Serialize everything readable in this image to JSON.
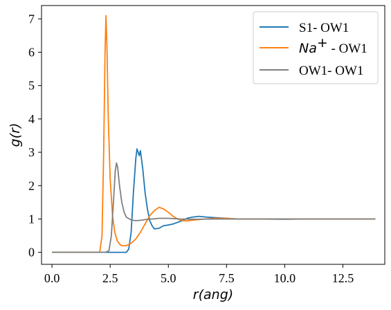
{
  "chart_data": {
    "type": "line",
    "xlabel": "r(ang)",
    "ylabel": "g(r)",
    "xlim": [
      -0.45,
      14.3
    ],
    "ylim": [
      -0.36,
      7.4
    ],
    "xticks": [
      "0.0",
      "2.5",
      "5.0",
      "7.5",
      "10.0",
      "12.5"
    ],
    "yticks": [
      "0",
      "1",
      "2",
      "3",
      "4",
      "5",
      "6",
      "7"
    ],
    "legend_position": "top-right",
    "series": [
      {
        "name": "S1- OW1",
        "color": "#1f77b4",
        "points": [
          [
            0,
            0
          ],
          [
            3.2,
            0
          ],
          [
            3.3,
            0.1
          ],
          [
            3.4,
            0.6
          ],
          [
            3.5,
            1.8
          ],
          [
            3.6,
            2.8
          ],
          [
            3.65,
            3.1
          ],
          [
            3.75,
            2.9
          ],
          [
            3.8,
            3.05
          ],
          [
            3.9,
            2.5
          ],
          [
            4.0,
            1.8
          ],
          [
            4.1,
            1.3
          ],
          [
            4.2,
            0.95
          ],
          [
            4.3,
            0.8
          ],
          [
            4.4,
            0.7
          ],
          [
            4.6,
            0.72
          ],
          [
            4.8,
            0.8
          ],
          [
            5.0,
            0.82
          ],
          [
            5.2,
            0.85
          ],
          [
            5.4,
            0.9
          ],
          [
            5.6,
            0.95
          ],
          [
            5.8,
            1.02
          ],
          [
            6.0,
            1.05
          ],
          [
            6.3,
            1.08
          ],
          [
            6.6,
            1.06
          ],
          [
            7.0,
            1.04
          ],
          [
            7.5,
            1.02
          ],
          [
            8.0,
            1.0
          ],
          [
            9.0,
            1.0
          ],
          [
            10.0,
            0.99
          ],
          [
            11.0,
            1.0
          ],
          [
            12.0,
            1.0
          ],
          [
            13.0,
            1.0
          ],
          [
            13.9,
            1.0
          ]
        ]
      },
      {
        "name": "Na+ - OW1",
        "color": "#ff7f0e",
        "points": [
          [
            0,
            0
          ],
          [
            2.05,
            0
          ],
          [
            2.15,
            0.5
          ],
          [
            2.22,
            3.0
          ],
          [
            2.28,
            6.0
          ],
          [
            2.32,
            7.1
          ],
          [
            2.36,
            6.2
          ],
          [
            2.42,
            4.0
          ],
          [
            2.5,
            2.2
          ],
          [
            2.6,
            1.1
          ],
          [
            2.7,
            0.6
          ],
          [
            2.8,
            0.35
          ],
          [
            2.9,
            0.25
          ],
          [
            3.0,
            0.2
          ],
          [
            3.2,
            0.2
          ],
          [
            3.4,
            0.27
          ],
          [
            3.6,
            0.4
          ],
          [
            3.8,
            0.6
          ],
          [
            4.0,
            0.85
          ],
          [
            4.2,
            1.1
          ],
          [
            4.4,
            1.25
          ],
          [
            4.6,
            1.35
          ],
          [
            4.8,
            1.3
          ],
          [
            5.0,
            1.2
          ],
          [
            5.2,
            1.08
          ],
          [
            5.4,
            1.0
          ],
          [
            5.6,
            0.95
          ],
          [
            5.8,
            0.94
          ],
          [
            6.0,
            0.96
          ],
          [
            6.3,
            0.98
          ],
          [
            6.6,
            1.0
          ],
          [
            7.0,
            1.02
          ],
          [
            7.5,
            1.02
          ],
          [
            8.0,
            1.0
          ],
          [
            9.0,
            1.0
          ],
          [
            10.0,
            1.0
          ],
          [
            11.0,
            1.0
          ],
          [
            12.0,
            1.0
          ],
          [
            13.0,
            1.0
          ],
          [
            13.9,
            1.0
          ]
        ]
      },
      {
        "name": "OW1- OW1",
        "color": "#7f7f7f",
        "points": [
          [
            0,
            0
          ],
          [
            2.3,
            0
          ],
          [
            2.45,
            0.05
          ],
          [
            2.55,
            0.5
          ],
          [
            2.65,
            1.6
          ],
          [
            2.72,
            2.45
          ],
          [
            2.77,
            2.68
          ],
          [
            2.82,
            2.55
          ],
          [
            2.9,
            2.0
          ],
          [
            3.0,
            1.5
          ],
          [
            3.1,
            1.2
          ],
          [
            3.2,
            1.05
          ],
          [
            3.4,
            0.97
          ],
          [
            3.6,
            0.95
          ],
          [
            3.8,
            0.96
          ],
          [
            4.0,
            0.98
          ],
          [
            4.3,
            1.0
          ],
          [
            4.6,
            1.02
          ],
          [
            5.0,
            1.02
          ],
          [
            5.5,
            1.0
          ],
          [
            6.0,
            0.99
          ],
          [
            7.0,
            1.0
          ],
          [
            8.0,
            1.0
          ],
          [
            9.0,
            1.0
          ],
          [
            10.0,
            1.0
          ],
          [
            11.0,
            1.0
          ],
          [
            12.0,
            1.0
          ],
          [
            13.0,
            1.0
          ],
          [
            13.9,
            1.0
          ]
        ]
      }
    ]
  }
}
